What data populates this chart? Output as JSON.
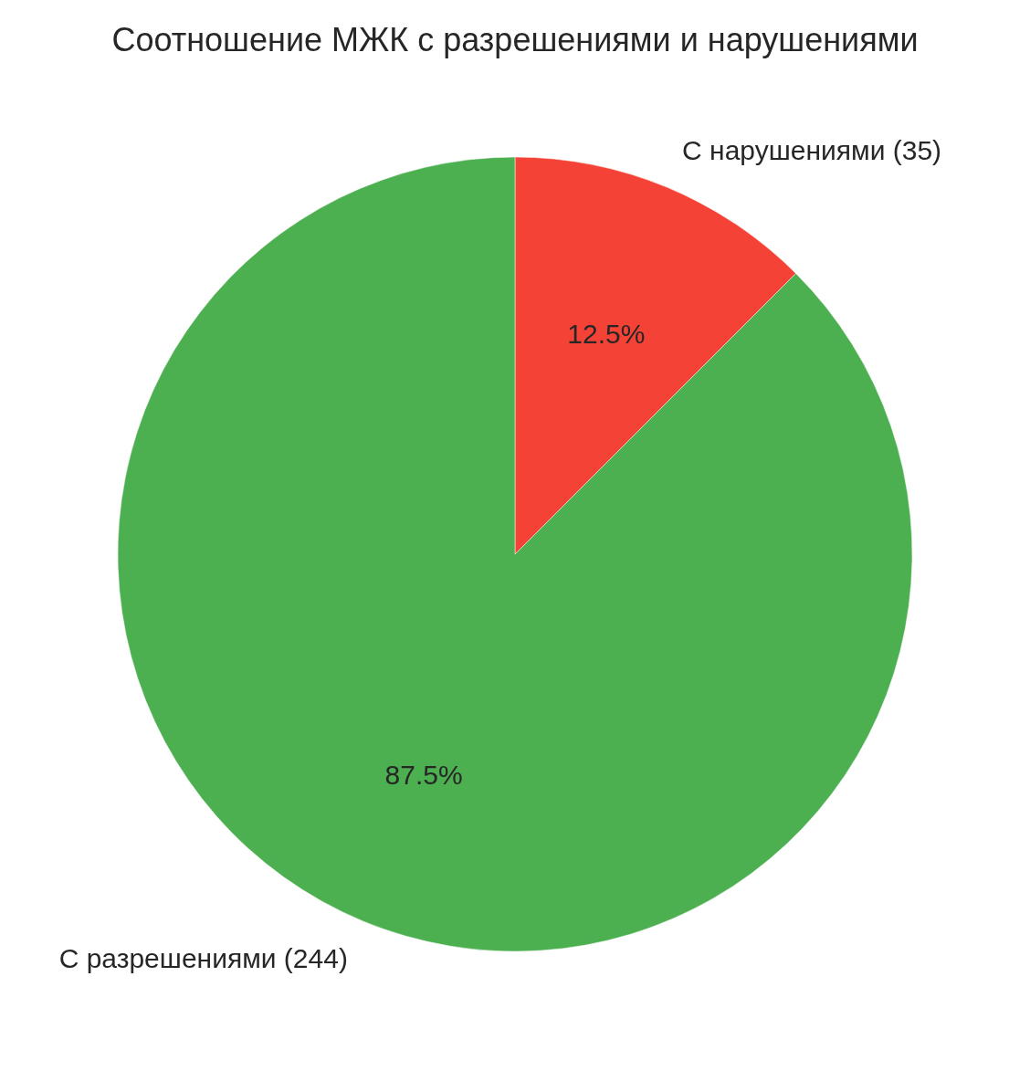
{
  "chart_data": {
    "type": "pie",
    "title": "Соотношение МЖК с разрешениями и нарушениями",
    "categories": [
      "С нарушениями (35)",
      "С разрешениями (244)"
    ],
    "values": [
      12.5,
      87.5
    ],
    "value_labels": [
      "12.5%",
      "87.5%"
    ],
    "colors": [
      "#f44336",
      "#4caf50"
    ],
    "legend": false
  }
}
